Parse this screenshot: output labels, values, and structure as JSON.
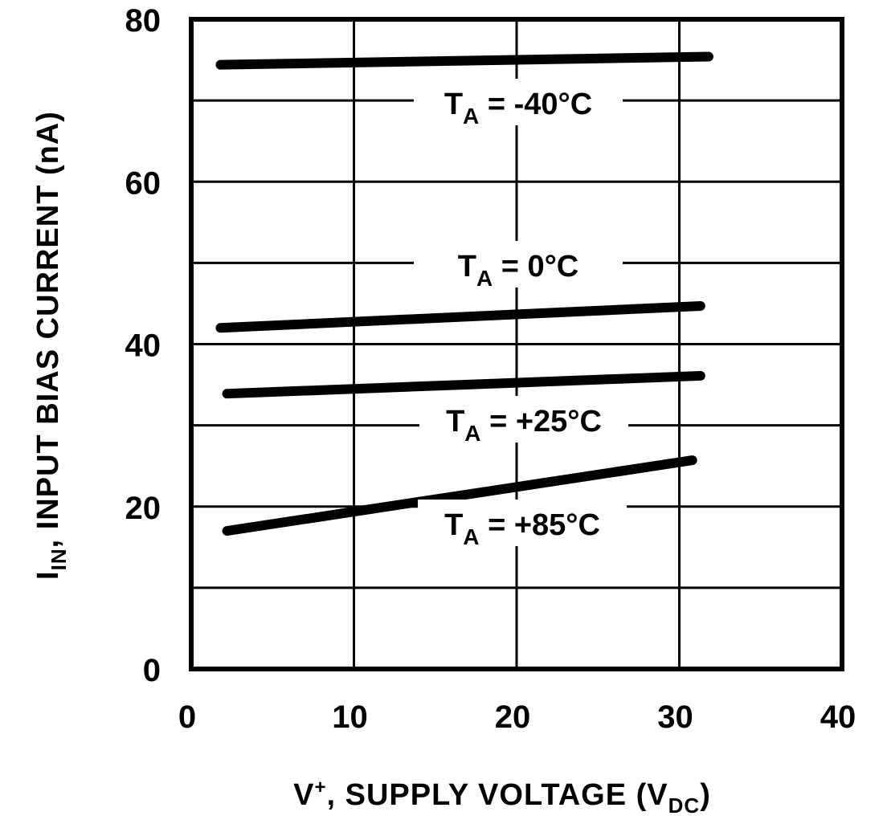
{
  "chart_data": {
    "type": "line",
    "title": "",
    "xlabel": {
      "main": "V",
      "sup": "+",
      "rest": ", SUPPLY VOLTAGE (V",
      "sub": "DC",
      "end": ")"
    },
    "ylabel": {
      "main": "I",
      "sub": "IN",
      "rest": ", INPUT BIAS CURRENT (nA)"
    },
    "xlim": [
      0,
      40
    ],
    "ylim": [
      0,
      80
    ],
    "xticks": [
      "0",
      "10",
      "20",
      "30",
      "40"
    ],
    "yticks": [
      "0",
      "20",
      "40",
      "60",
      "80"
    ],
    "grid": true,
    "series": [
      {
        "name": "T_A = -40°C",
        "label": {
          "t": "T",
          "sub": "A",
          "rest": " = -40°C"
        },
        "x": [
          1.8,
          31.8
        ],
        "y": [
          74.4,
          75.4
        ]
      },
      {
        "name": "T_A = 0°C",
        "label": {
          "t": "T",
          "sub": "A",
          "rest": " = 0°C"
        },
        "x": [
          1.8,
          31.3
        ],
        "y": [
          42.0,
          44.7
        ]
      },
      {
        "name": "T_A = +25°C",
        "label": {
          "t": "T",
          "sub": "A",
          "rest": " = +25°C"
        },
        "x": [
          2.2,
          31.3
        ],
        "y": [
          33.9,
          36.1
        ]
      },
      {
        "name": "T_A = +85°C",
        "label": {
          "t": "T",
          "sub": "A",
          "rest": " = +85°C"
        },
        "x": [
          2.2,
          30.8
        ],
        "y": [
          17.0,
          25.7
        ]
      }
    ],
    "line_color": "#000000"
  }
}
